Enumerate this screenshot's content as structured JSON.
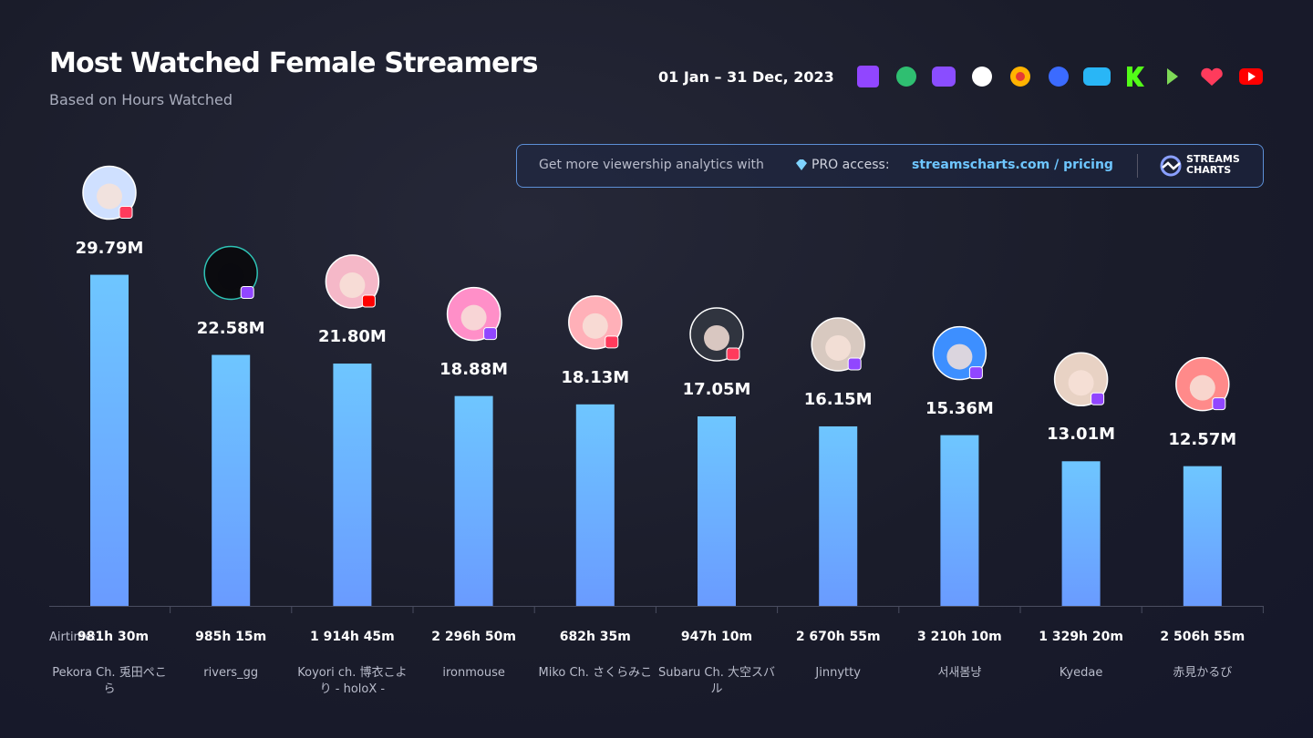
{
  "chart_data": {
    "type": "bar",
    "title": "Most Watched Female Streamers",
    "subtitle": "Based on Hours Watched",
    "date_range": "01 Jan – 31 Dec, 2023",
    "categories": [
      "Pekora Ch. 兎田ぺこら",
      "rivers_gg",
      "Koyori ch. 博衣こより - holoX -",
      "ironmouse",
      "Miko Ch. さくらみこ",
      "Subaru Ch. 大空スバル",
      "Jinnytty",
      "서새봄냥",
      "Kyedae",
      "赤見かるび"
    ],
    "values": [
      29.79,
      22.58,
      21.8,
      18.88,
      18.13,
      17.05,
      16.15,
      15.36,
      13.01,
      12.57
    ],
    "value_labels": [
      "29.79M",
      "22.58M",
      "21.80M",
      "18.88M",
      "18.13M",
      "17.05M",
      "16.15M",
      "15.36M",
      "13.01M",
      "12.57M"
    ],
    "airtime_label": "Airtime:",
    "airtime": [
      "981h 30m",
      "985h 15m",
      "1 914h 45m",
      "2 296h 50m",
      "682h 35m",
      "947h 10m",
      "2 670h 55m",
      "3 210h 10m",
      "1 329h 20m",
      "2 506h 55m"
    ],
    "color": "#6ec6ff"
  },
  "promo": {
    "text": "Get more viewership analytics with",
    "pro": "PRO access:",
    "link": "streamscharts.com / pricing"
  },
  "logo": [
    "STREAMS",
    "CHARTS"
  ]
}
